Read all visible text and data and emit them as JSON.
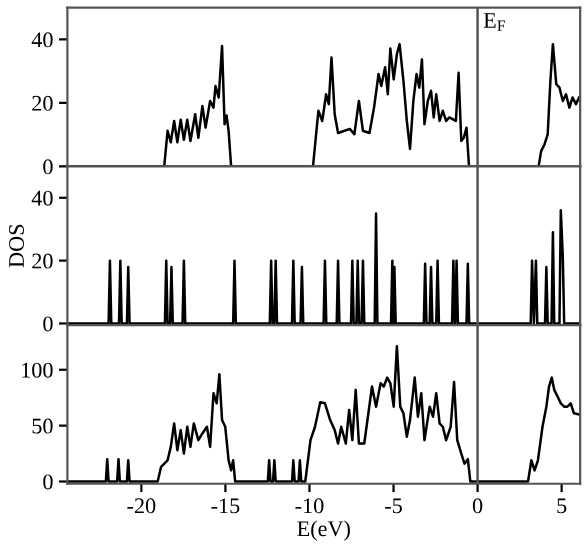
{
  "chart_data": [
    {
      "type": "line",
      "xlim": [
        -24.4,
        6.1
      ],
      "ylim": [
        0,
        50
      ],
      "yticks": [
        0,
        20,
        40
      ],
      "xticks": [
        -20,
        -15,
        -10,
        -5,
        0,
        5
      ],
      "tick_labels": "y",
      "grid": false,
      "legend": false,
      "ref_lines": [
        {
          "axis": "x",
          "value": 0,
          "label": "E$_{F}$",
          "color": "#555555"
        }
      ],
      "series": [
        {
          "color": "#000000",
          "x": [
            -24.4,
            -18.64,
            -18.44,
            -18.25,
            -18.05,
            -17.86,
            -17.66,
            -17.47,
            -17.27,
            -17.08,
            -16.8,
            -16.61,
            -16.37,
            -16.18,
            -15.91,
            -15.71,
            -15.59,
            -15.4,
            -15.2,
            -15.05,
            -14.93,
            -14.81,
            -14.66,
            -9.79,
            -9.47,
            -9.24,
            -9.01,
            -8.85,
            -8.69,
            -8.5,
            -8.3,
            -7.91,
            -7.6,
            -7.33,
            -7.06,
            -6.82,
            -6.43,
            -6.16,
            -5.89,
            -5.73,
            -5.5,
            -5.34,
            -5.19,
            -4.99,
            -4.8,
            -4.64,
            -4.41,
            -4.21,
            -4.02,
            -3.82,
            -3.63,
            -3.47,
            -3.31,
            -3.16,
            -2.96,
            -2.77,
            -2.61,
            -2.46,
            -2.26,
            -2.07,
            -1.87,
            -1.68,
            -1.29,
            -1.13,
            -0.97,
            -0.82,
            -0.66,
            -0.51,
            3.63,
            3.78,
            3.98,
            4.17,
            4.33,
            4.48,
            4.68,
            4.87,
            5.07,
            5.26,
            5.46,
            5.65,
            5.85,
            6.04
          ],
          "values": [
            0,
            0,
            11.2,
            7.6,
            14.3,
            7.6,
            14.7,
            8.4,
            14.7,
            8,
            16.4,
            9,
            19,
            12.2,
            20.6,
            18.5,
            25.3,
            21.7,
            37.9,
            13.3,
            16,
            11.2,
            0,
            0,
            17.5,
            14.3,
            22.7,
            19.6,
            34.3,
            16.4,
            10.5,
            11.2,
            11.8,
            10.1,
            20.6,
            11.2,
            10.5,
            18.5,
            29.1,
            25.3,
            31.2,
            22.7,
            37.1,
            27.4,
            35.4,
            38.5,
            26.9,
            14.3,
            5.5,
            20.6,
            29.1,
            24.8,
            33.7,
            13.3,
            20.6,
            23.8,
            15.4,
            22.7,
            14.3,
            17.5,
            14.3,
            15.4,
            14.3,
            29.5,
            8,
            9,
            12.2,
            0,
            0,
            4.8,
            6.9,
            10.1,
            26.9,
            38.5,
            25.9,
            24.8,
            20.6,
            22.7,
            18.5,
            21.7,
            19.6,
            21.7
          ]
        }
      ]
    },
    {
      "type": "line",
      "xlim": [
        -24.4,
        6.1
      ],
      "ylim": [
        -0.5,
        50
      ],
      "yticks": [
        0,
        20,
        40
      ],
      "xticks": [
        -20,
        -15,
        -10,
        -5,
        0,
        5
      ],
      "tick_labels": "y",
      "ylabel": "DOS",
      "grid": false,
      "legend": false,
      "ref_lines": [
        {
          "axis": "x",
          "value": 0,
          "color": "#555555"
        }
      ],
      "series": [
        {
          "color": "#000000",
          "x": [
            -24.4,
            -21.95,
            -21.87,
            -21.79,
            -21.33,
            -21.25,
            -21.17,
            -20.86,
            -20.78,
            -20.7,
            -18.6,
            -18.52,
            -18.44,
            -18.29,
            -18.21,
            -18.13,
            -17.55,
            -17.47,
            -17.39,
            -14.54,
            -14.46,
            -14.38,
            -12.36,
            -12.28,
            -12.2,
            -12.09,
            -12.01,
            -11.93,
            -11.04,
            -10.96,
            -10.88,
            -10.53,
            -10.45,
            -10.37,
            -9.16,
            -9.08,
            -9.0,
            -8.38,
            -8.3,
            -8.22,
            -7.53,
            -7.45,
            -7.37,
            -7.21,
            -7.13,
            -7.05,
            -6.9,
            -6.82,
            -6.74,
            -6.12,
            -6.04,
            -5.96,
            -5.15,
            -5.07,
            -5.01,
            -4.95,
            -4.87,
            -3.2,
            -3.12,
            -3.04,
            -2.85,
            -2.77,
            -2.69,
            -2.46,
            -2.38,
            -2.3,
            -1.52,
            -1.44,
            -1.36,
            -1.33,
            -1.25,
            -1.17,
            -0.66,
            -0.58,
            -0.5,
            3.16,
            3.24,
            3.35,
            3.47,
            3.55,
            4.01,
            4.09,
            4.17,
            4.4,
            4.48,
            4.56,
            4.87,
            4.95,
            5.07,
            5.15,
            6.1
          ],
          "values": [
            0,
            0,
            20,
            0,
            0,
            20,
            0,
            0,
            18,
            0,
            0,
            20,
            0,
            0,
            18,
            0,
            0,
            20,
            0,
            0,
            20,
            0,
            0,
            20,
            0,
            0,
            20,
            0,
            0,
            20,
            0,
            0,
            18,
            0,
            0,
            20,
            0,
            0,
            20,
            0,
            0,
            20,
            0,
            0,
            20,
            0,
            0,
            20,
            0,
            0,
            35,
            0,
            0,
            20,
            0,
            18,
            0,
            0,
            19,
            0,
            0,
            18,
            0,
            0,
            20,
            0,
            0,
            20,
            0,
            0,
            20,
            0,
            0,
            19,
            0,
            0,
            20,
            0,
            20,
            0,
            0,
            18,
            0,
            0,
            29,
            0,
            0,
            36,
            21,
            0,
            0
          ]
        }
      ]
    },
    {
      "type": "line",
      "xlim": [
        -24.4,
        6.1
      ],
      "ylim": [
        -2,
        140
      ],
      "yticks": [
        0,
        50,
        100
      ],
      "xticks": [
        -20,
        -15,
        -10,
        -5,
        0,
        5
      ],
      "xlabel": "E(eV)",
      "grid": false,
      "legend": false,
      "ref_lines": [
        {
          "axis": "x",
          "value": 0,
          "color": "#555555"
        }
      ],
      "series": [
        {
          "color": "#000000",
          "x": [
            -24.4,
            -22.11,
            -22.03,
            -21.95,
            -21.44,
            -21.36,
            -21.28,
            -20.86,
            -20.78,
            -20.7,
            -19.03,
            -18.83,
            -18.44,
            -18.25,
            -18.05,
            -17.86,
            -17.66,
            -17.47,
            -17.27,
            -17.08,
            -16.88,
            -16.61,
            -16.37,
            -16.1,
            -15.91,
            -15.71,
            -15.52,
            -15.36,
            -15.2,
            -15.01,
            -14.81,
            -14.66,
            -14.54,
            -14.42,
            -12.48,
            -12.4,
            -12.32,
            -12.17,
            -12.09,
            -12.01,
            -11.04,
            -10.96,
            -10.88,
            -10.65,
            -10.57,
            -10.49,
            -10.25,
            -9.94,
            -9.67,
            -9.36,
            -9.08,
            -8.77,
            -8.5,
            -8.3,
            -8.11,
            -7.84,
            -7.64,
            -7.45,
            -7.25,
            -7.06,
            -6.74,
            -6.47,
            -6.28,
            -6.04,
            -5.77,
            -5.58,
            -5.38,
            -5.19,
            -4.99,
            -4.8,
            -4.6,
            -4.41,
            -4.21,
            -4.02,
            -3.74,
            -3.55,
            -3.35,
            -3.16,
            -2.85,
            -2.65,
            -2.46,
            -2.26,
            -2.07,
            -1.87,
            -1.6,
            -1.4,
            -1.21,
            -0.97,
            -0.78,
            -0.58,
            -0.43,
            3.0,
            3.2,
            3.39,
            3.59,
            3.86,
            4.09,
            4.25,
            4.41,
            4.56,
            4.76,
            4.95,
            5.15,
            5.34,
            5.54,
            5.73,
            6.04
          ],
          "values": [
            0,
            0,
            20,
            0,
            0,
            20,
            0,
            0,
            19,
            0,
            0,
            13,
            19,
            31,
            52,
            28,
            46,
            25,
            49,
            31,
            52,
            37,
            43,
            49,
            31,
            79,
            70,
            96,
            55,
            49,
            19,
            10,
            19,
            0,
            0,
            19,
            0,
            0,
            19,
            0,
            0,
            19,
            0,
            0,
            19,
            0,
            0,
            37,
            49,
            71,
            70,
            55,
            46,
            34,
            49,
            34,
            64,
            37,
            82,
            34,
            34,
            64,
            85,
            67,
            88,
            85,
            93,
            88,
            67,
            121,
            67,
            61,
            40,
            55,
            93,
            58,
            79,
            37,
            67,
            58,
            79,
            52,
            49,
            37,
            49,
            89,
            37,
            25,
            16,
            20,
            0,
            0,
            19,
            10,
            19,
            49,
            67,
            85,
            93,
            82,
            76,
            70,
            67,
            67,
            70,
            61,
            60
          ]
        }
      ]
    }
  ]
}
